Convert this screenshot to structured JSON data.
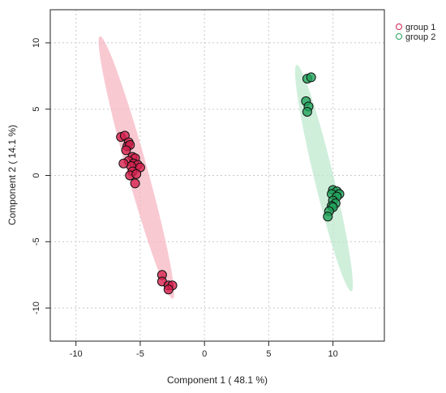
{
  "chart_data": {
    "type": "scatter",
    "title": "",
    "xlabel": "Component 1 ( 48.1 %)",
    "ylabel": "Component 2 ( 14.1 %)",
    "xlim": [
      -12,
      14
    ],
    "ylim": [
      -12.5,
      12.5
    ],
    "xticks": [
      -10,
      -5,
      0,
      5,
      10
    ],
    "yticks": [
      -10,
      -5,
      0,
      5,
      10
    ],
    "grid": true,
    "legend_position": "top-right",
    "series": [
      {
        "name": "group 1",
        "color": "#d6204e",
        "ellipse_color": "#f7b7c3",
        "points": [
          [
            -6.5,
            2.9
          ],
          [
            -6.2,
            3.0
          ],
          [
            -5.9,
            2.5
          ],
          [
            -6.0,
            2.2
          ],
          [
            -5.8,
            2.3
          ],
          [
            -6.1,
            1.9
          ],
          [
            -5.6,
            1.4
          ],
          [
            -5.4,
            1.3
          ],
          [
            -5.9,
            1.1
          ],
          [
            -5.5,
            0.9
          ],
          [
            -5.2,
            0.8
          ],
          [
            -5.0,
            0.6
          ],
          [
            -5.7,
            0.7
          ],
          [
            -6.3,
            0.9
          ],
          [
            -5.6,
            0.3
          ],
          [
            -5.8,
            0.0
          ],
          [
            -5.3,
            0.1
          ],
          [
            -5.4,
            -0.6
          ],
          [
            -3.3,
            -7.5
          ],
          [
            -3.3,
            -8.0
          ],
          [
            -2.8,
            -8.3
          ],
          [
            -2.5,
            -8.3
          ],
          [
            -2.8,
            -8.6
          ]
        ],
        "ellipse": {
          "cx": -5.3,
          "cy": 0.6,
          "rx": 10.3,
          "ry": 0.8,
          "angle_deg": -74
        }
      },
      {
        "name": "group 2",
        "color": "#1fa35a",
        "ellipse_color": "#bfe9cf",
        "points": [
          [
            8.0,
            7.3
          ],
          [
            8.3,
            7.4
          ],
          [
            7.9,
            5.6
          ],
          [
            8.1,
            5.2
          ],
          [
            8.0,
            4.8
          ],
          [
            10.0,
            -1.1
          ],
          [
            10.3,
            -1.2
          ],
          [
            9.9,
            -1.4
          ],
          [
            10.5,
            -1.4
          ],
          [
            10.3,
            -1.6
          ],
          [
            10.0,
            -1.9
          ],
          [
            10.2,
            -2.1
          ],
          [
            9.9,
            -2.3
          ],
          [
            10.0,
            -2.4
          ],
          [
            9.7,
            -2.7
          ],
          [
            9.6,
            -3.1
          ]
        ],
        "ellipse": {
          "cx": 9.3,
          "cy": -0.2,
          "rx": 8.8,
          "ry": 0.75,
          "angle_deg": -76
        }
      }
    ]
  }
}
